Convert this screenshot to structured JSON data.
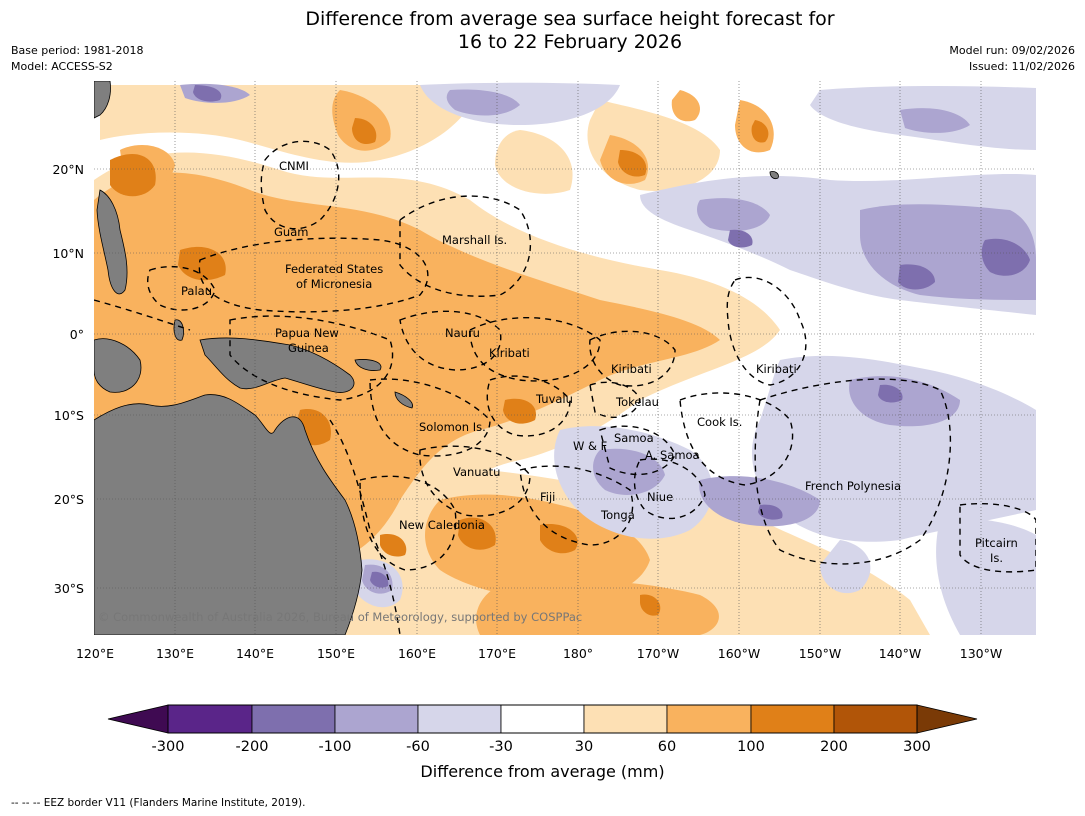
{
  "title_line1": "Difference from average sea surface height forecast for",
  "title_line2": "16 to 22 February 2026",
  "meta_left": {
    "base_period": "Base period: 1981-2018",
    "model": "Model: ACCESS-S2"
  },
  "meta_right": {
    "model_run": "Model run: 09/02/2026",
    "issued": "Issued: 11/02/2026"
  },
  "copyright": "© Commonwealth of Australia 2026, Bureau of Meteorology, supported by COSPPac",
  "footer": "--  --  -- EEZ border V11 (Flanders Marine Institute, 2019).",
  "lon_labels": [
    "120°E",
    "130°E",
    "140°E",
    "150°E",
    "160°E",
    "170°E",
    "180°",
    "170°W",
    "160°W",
    "150°W",
    "140°W",
    "130°W"
  ],
  "lat_labels": [
    "20°N",
    "10°N",
    "0°",
    "10°S",
    "20°S",
    "30°S"
  ],
  "place_labels": [
    {
      "id": "cnmi",
      "text": "CNMI"
    },
    {
      "id": "guam",
      "text": "Guam"
    },
    {
      "id": "marshall",
      "text": "Marshall Is."
    },
    {
      "id": "fsm1",
      "text": "Federated States"
    },
    {
      "id": "fsm2",
      "text": "of Micronesia"
    },
    {
      "id": "palau",
      "text": "Palau"
    },
    {
      "id": "png1",
      "text": "Papua New"
    },
    {
      "id": "png2",
      "text": "Guinea"
    },
    {
      "id": "nauru",
      "text": "Nauru"
    },
    {
      "id": "kiribati1",
      "text": "Kiribati"
    },
    {
      "id": "kiribati2",
      "text": "Kiribati"
    },
    {
      "id": "kiribati3",
      "text": "Kiribati"
    },
    {
      "id": "tuvalu",
      "text": "Tuvalu"
    },
    {
      "id": "tokelau",
      "text": "Tokelau"
    },
    {
      "id": "solomon",
      "text": "Solomon Is."
    },
    {
      "id": "cook",
      "text": "Cook Is."
    },
    {
      "id": "wf",
      "text": "W & F"
    },
    {
      "id": "samoa",
      "text": "Samoa"
    },
    {
      "id": "asamoa",
      "text": "A. Samoa"
    },
    {
      "id": "vanuatu",
      "text": "Vanuatu"
    },
    {
      "id": "fiji",
      "text": "Fiji"
    },
    {
      "id": "niue",
      "text": "Niue"
    },
    {
      "id": "frpoly",
      "text": "French Polynesia"
    },
    {
      "id": "tonga",
      "text": "Tonga"
    },
    {
      "id": "newcal",
      "text": "New Caledonia"
    },
    {
      "id": "pitcairn1",
      "text": "Pitcairn"
    },
    {
      "id": "pitcairn2",
      "text": "Is."
    }
  ],
  "colorbar": {
    "label": "Difference from average (mm)",
    "ticks": [
      "-300",
      "-200",
      "-100",
      "-60",
      "-30",
      "30",
      "60",
      "100",
      "200",
      "300"
    ],
    "colors": [
      "#3f0a52",
      "#5a2589",
      "#7e6fae",
      "#aca5d0",
      "#d6d6ea",
      "#ffffff",
      "#fde0b4",
      "#f9b25e",
      "#e08018",
      "#b15508",
      "#7a3a06"
    ]
  },
  "colors": {
    "land": "#7f7f7f",
    "ocean": "#ffffff"
  }
}
